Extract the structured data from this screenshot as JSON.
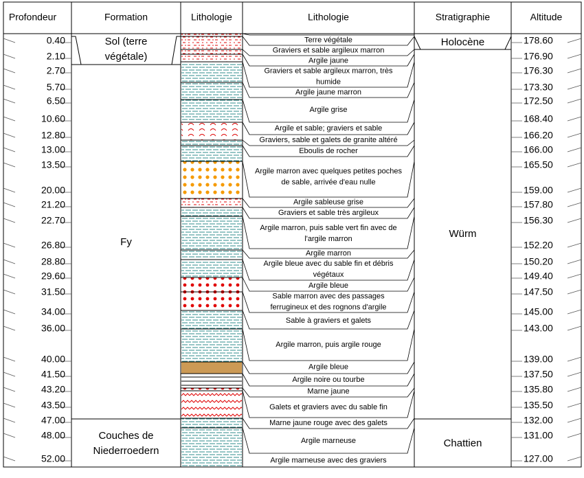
{
  "headers": {
    "depth": "Profondeur",
    "formation": "Formation",
    "lithology_graphic": "Lithologie",
    "lithology_text": "Lithologie",
    "stratigraphy": "Stratigraphie",
    "altitude": "Altitude"
  },
  "depths": [
    "0.40",
    "2.10",
    "2.70",
    "5.70",
    "6.50",
    "10.60",
    "12.80",
    "13.00",
    "13.50",
    "20.00",
    "21.20",
    "22.70",
    "26.80",
    "28.80",
    "29.60",
    "31.50",
    "34.00",
    "36.00",
    "40.00",
    "41.50",
    "43.20",
    "43.50",
    "47.00",
    "48.00",
    "52.00"
  ],
  "altitudes": [
    "178.60",
    "176.90",
    "176.30",
    "173.30",
    "172.50",
    "168.40",
    "166.20",
    "166.00",
    "165.50",
    "159.00",
    "157.80",
    "156.30",
    "152.20",
    "150.20",
    "149.40",
    "147.50",
    "145.00",
    "143.00",
    "139.00",
    "137.50",
    "135.80",
    "135.50",
    "132.00",
    "131.00",
    "127.00"
  ],
  "formations": [
    {
      "lines": [
        "Sol (terre",
        "végétale)"
      ]
    },
    {
      "lines": [
        "Fy"
      ]
    },
    {
      "lines": [
        "Couches de",
        "Niederroedern"
      ]
    }
  ],
  "stratigraphy": [
    {
      "label": "Holocène"
    },
    {
      "label": "Würm"
    },
    {
      "label": "Chattien"
    }
  ],
  "layers": [
    {
      "lines": [
        "Terre végétale"
      ],
      "pattern": "red-dash"
    },
    {
      "lines": [
        "Graviers et sable argileux marron"
      ],
      "pattern": "red-dash"
    },
    {
      "lines": [
        "Argile jaune"
      ],
      "pattern": "red-dash"
    },
    {
      "lines": [
        "Graviers et sable argileux marron, très",
        "humide"
      ],
      "pattern": "red-dash"
    },
    {
      "lines": [
        "Argile jaune marron"
      ],
      "pattern": "clay"
    },
    {
      "lines": [
        "Argile grise"
      ],
      "pattern": "clay"
    },
    {
      "lines": [
        "Argile et sable; graviers et sable"
      ],
      "pattern": "clay"
    },
    {
      "lines": [
        "Graviers, sable et galets de granite altéré"
      ],
      "pattern": "granite"
    },
    {
      "lines": [
        "Eboulis de rocher"
      ],
      "pattern": "clay"
    },
    {
      "lines": [
        "Argile marron avec quelques petites poches",
        "de sable, arrivée d'eau nulle"
      ],
      "pattern": "clay"
    },
    {
      "lines": [
        "Argile sableuse grise"
      ],
      "pattern": "orange-dots"
    },
    {
      "lines": [
        "Graviers et sable très argileux"
      ],
      "pattern": "red-dash"
    },
    {
      "lines": [
        "Argile marron, puis sable vert fin avec de",
        "l'argile marron"
      ],
      "pattern": "clay"
    },
    {
      "lines": [
        "Argile marron"
      ],
      "pattern": "clay"
    },
    {
      "lines": [
        "Argile bleue avec du sable fin et débris",
        "végétaux"
      ],
      "pattern": "clay"
    },
    {
      "lines": [
        "Argile bleue"
      ],
      "pattern": "clay"
    },
    {
      "lines": [
        "Sable marron avec des passages",
        "ferrugineux et des rognons d'argile"
      ],
      "pattern": "red-dots"
    },
    {
      "lines": [
        "Sable à graviers et galets"
      ],
      "pattern": "red-dots"
    },
    {
      "lines": [
        "Argile marron, puis argile rouge"
      ],
      "pattern": "clay"
    },
    {
      "lines": [
        "Argile bleue"
      ],
      "pattern": "clay"
    },
    {
      "lines": [
        "Argile noire ou tourbe"
      ],
      "pattern": "peat"
    },
    {
      "lines": [
        "Marne jaune"
      ],
      "pattern": "marl"
    },
    {
      "lines": [
        "Galets et graviers avec du sable fin"
      ],
      "pattern": "red-dots"
    },
    {
      "lines": [
        "Marne jaune rouge avec des galets"
      ],
      "pattern": "wavy"
    },
    {
      "lines": [
        "Argile marneuse"
      ],
      "pattern": "clay"
    },
    {
      "lines": [
        "Argile marneuse avec des graviers"
      ],
      "pattern": "clay"
    }
  ],
  "colors": {
    "clay": "#2e8b8b",
    "red": "#e00000",
    "orange": "#f59a00",
    "peat": "#cc9a55",
    "line": "#000000"
  }
}
